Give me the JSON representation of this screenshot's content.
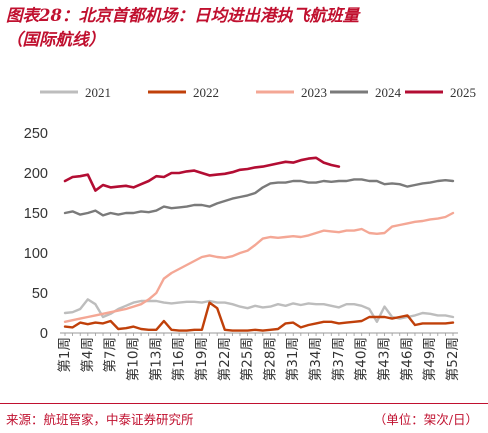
{
  "title": {
    "line1": "图表28：北京首都机场：日均进出港执飞航班量",
    "line2": "（国际航线）"
  },
  "footer": {
    "source": "来源：航班管家，中泰证券研究所",
    "unit": "（单位：架次/日）"
  },
  "chart_data": {
    "type": "line",
    "ylim": [
      0,
      250
    ],
    "yticks": [
      0,
      50,
      100,
      150,
      200,
      250
    ],
    "grid": false,
    "legend_position": "top",
    "x_count": 52,
    "x_tick_labels": [
      "第1周",
      "第4周",
      "第7周",
      "第10周",
      "第13周",
      "第16周",
      "第19周",
      "第22周",
      "第25周",
      "第28周",
      "第31周",
      "第34周",
      "第37周",
      "第40周",
      "第43周",
      "第46周",
      "第49周",
      "第52周"
    ],
    "x_tick_weeks": [
      1,
      4,
      7,
      10,
      13,
      16,
      19,
      22,
      25,
      28,
      31,
      34,
      37,
      40,
      43,
      46,
      49,
      52
    ],
    "series": [
      {
        "name": "2021",
        "color": "#bdbdbd",
        "values": [
          25,
          26,
          30,
          42,
          36,
          20,
          24,
          30,
          34,
          38,
          40,
          40,
          40,
          38,
          37,
          38,
          39,
          39,
          38,
          40,
          38,
          38,
          36,
          33,
          31,
          34,
          32,
          33,
          36,
          34,
          37,
          35,
          37,
          36,
          36,
          34,
          32,
          36,
          36,
          34,
          30,
          14,
          33,
          20,
          18,
          20,
          22,
          25,
          24,
          22,
          22,
          20
        ]
      },
      {
        "name": "2022",
        "color": "#c0400a",
        "values": [
          8,
          7,
          13,
          11,
          13,
          12,
          15,
          5,
          6,
          8,
          5,
          4,
          4,
          15,
          4,
          3,
          3,
          4,
          4,
          38,
          31,
          4,
          3,
          3,
          3,
          4,
          3,
          4,
          5,
          12,
          13,
          7,
          10,
          12,
          14,
          14,
          12,
          13,
          14,
          15,
          20,
          20,
          20,
          18,
          20,
          22,
          10,
          12,
          12,
          12,
          12,
          13
        ]
      },
      {
        "name": "2023",
        "color": "#f4a795",
        "values": [
          14,
          16,
          18,
          20,
          22,
          24,
          26,
          28,
          30,
          33,
          36,
          42,
          50,
          68,
          75,
          80,
          85,
          90,
          95,
          97,
          95,
          94,
          96,
          100,
          103,
          110,
          118,
          120,
          119,
          120,
          121,
          120,
          122,
          125,
          128,
          127,
          126,
          128,
          128,
          130,
          125,
          124,
          125,
          133,
          135,
          137,
          139,
          140,
          142,
          143,
          145,
          150
        ]
      },
      {
        "name": "2024",
        "color": "#7a7a7a",
        "values": [
          150,
          152,
          148,
          150,
          153,
          147,
          150,
          148,
          150,
          150,
          152,
          151,
          153,
          158,
          156,
          157,
          158,
          160,
          160,
          158,
          162,
          165,
          168,
          170,
          172,
          175,
          182,
          187,
          188,
          188,
          190,
          190,
          188,
          188,
          190,
          189,
          190,
          190,
          192,
          192,
          190,
          190,
          186,
          187,
          186,
          183,
          185,
          187,
          188,
          190,
          191,
          190
        ]
      },
      {
        "name": "2025",
        "color": "#b30d33",
        "values": [
          190,
          195,
          196,
          198,
          178,
          185,
          182,
          183,
          184,
          182,
          186,
          190,
          196,
          195,
          200,
          200,
          202,
          203,
          200,
          197,
          198,
          199,
          201,
          204,
          205,
          207,
          208,
          210,
          212,
          214,
          213,
          216,
          218,
          219,
          213,
          210,
          208
        ]
      }
    ]
  }
}
